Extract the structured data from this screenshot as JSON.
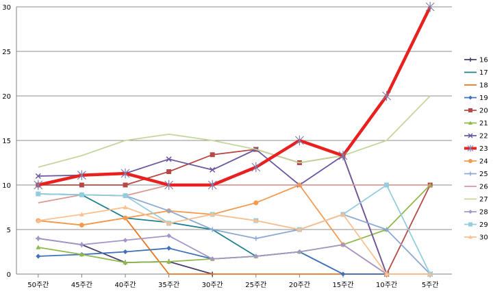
{
  "chart_data": {
    "type": "line",
    "title": "",
    "xlabel": "",
    "ylabel": "",
    "categories": [
      "50주간",
      "45주간",
      "40주간",
      "35주간",
      "30주간",
      "25주간",
      "20주간",
      "15주간",
      "10주간",
      "5주간"
    ],
    "ylim": [
      0,
      30
    ],
    "yticks": [
      0,
      5,
      10,
      15,
      20,
      25,
      30
    ],
    "grid": "horizontal",
    "legend_position": "right",
    "series": [
      {
        "name": "16",
        "color": "#4b3b6b",
        "marker": "plus",
        "values": [
          4,
          3.3,
          1.3,
          1.4,
          0,
          null,
          null,
          null,
          null,
          null
        ]
      },
      {
        "name": "17",
        "color": "#1f7f8f",
        "marker": "none",
        "values": [
          9,
          8.9,
          6.3,
          5.8,
          5,
          2,
          2.5,
          0,
          0,
          null
        ]
      },
      {
        "name": "18",
        "color": "#e8761d",
        "marker": "none",
        "values": [
          6,
          5.5,
          6.3,
          0,
          0,
          0,
          0,
          0,
          0,
          0
        ]
      },
      {
        "name": "19",
        "color": "#3f70b8",
        "marker": "diamond",
        "values": [
          2,
          2.2,
          2.5,
          2.9,
          1.7,
          2,
          2.5,
          0,
          0,
          null
        ]
      },
      {
        "name": "20",
        "color": "#b84846",
        "marker": "square",
        "values": [
          10,
          10,
          10,
          11.5,
          13.4,
          14,
          12.5,
          13.3,
          0,
          10
        ]
      },
      {
        "name": "21",
        "color": "#8fb84d",
        "marker": "triangle",
        "values": [
          3,
          2.2,
          1.3,
          1.4,
          1.7,
          2,
          2.5,
          3.3,
          5,
          10
        ]
      },
      {
        "name": "22",
        "color": "#6b56a0",
        "marker": "cross",
        "values": [
          11,
          11.1,
          11.3,
          12.9,
          11.7,
          14,
          10,
          13.3,
          0,
          0
        ]
      },
      {
        "name": "23",
        "color": "#e8201f",
        "marker": "star",
        "width": 4.5,
        "values": [
          10,
          11.1,
          11.3,
          10,
          10,
          12,
          15,
          13.3,
          20,
          30
        ]
      },
      {
        "name": "24",
        "color": "#f39a4e",
        "marker": "circle",
        "values": [
          6,
          5.5,
          6.3,
          7.1,
          6.7,
          8,
          10,
          3.3,
          0,
          0
        ]
      },
      {
        "name": "25",
        "color": "#8ca8d6",
        "marker": "plus",
        "values": [
          9,
          8.9,
          8.8,
          7.1,
          5,
          4,
          5,
          6.7,
          5,
          0
        ]
      },
      {
        "name": "26",
        "color": "#d99795",
        "marker": "none",
        "values": [
          8,
          8.9,
          8.8,
          10,
          10,
          10,
          10,
          10,
          10,
          10
        ]
      },
      {
        "name": "27",
        "color": "#c3d69b",
        "marker": "none",
        "values": [
          12,
          13.3,
          15,
          15.7,
          15,
          14,
          12.5,
          13.3,
          15,
          20
        ]
      },
      {
        "name": "28",
        "color": "#a497c7",
        "marker": "diamond",
        "values": [
          4,
          3.3,
          3.8,
          4.3,
          1.7,
          2,
          2.5,
          3.3,
          0,
          null
        ]
      },
      {
        "name": "29",
        "color": "#93cddd",
        "marker": "square",
        "values": [
          9,
          8.9,
          8.8,
          5.7,
          6.7,
          6,
          5,
          6.7,
          10,
          0
        ]
      },
      {
        "name": "30",
        "color": "#fac090",
        "marker": "triangle",
        "values": [
          6,
          6.7,
          7.5,
          5.7,
          6.7,
          6,
          5,
          6.7,
          0,
          0
        ]
      }
    ]
  }
}
